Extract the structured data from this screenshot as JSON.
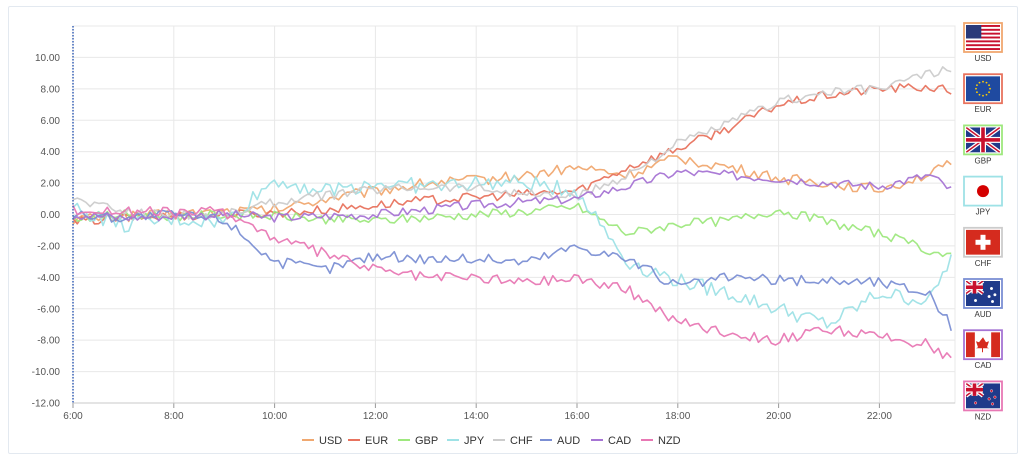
{
  "chart_data": {
    "type": "line",
    "title": "",
    "xlabel": "",
    "ylabel": "",
    "x_tick_labels": [
      "6:00",
      "8:00",
      "10:00",
      "12:00",
      "14:00",
      "16:00",
      "18:00",
      "20:00",
      "22:00"
    ],
    "y_tick_labels": [
      "10.00",
      "8.00",
      "6.00",
      "4.00",
      "2.00",
      "0.00",
      "-2.00",
      "-4.00",
      "-6.00",
      "-8.00",
      "-10.00",
      "-12.00"
    ],
    "xlim_hours": [
      6,
      23.5
    ],
    "ylim": [
      -12,
      12
    ],
    "grid": true,
    "legend_position": "bottom",
    "series": [
      {
        "name": "USD",
        "color": "#f0a870",
        "wobble": 0.35,
        "x": [
          6,
          7,
          8,
          9,
          10,
          11,
          12,
          13,
          14,
          15,
          16,
          17,
          18,
          19,
          20,
          21,
          22,
          23,
          23.5
        ],
        "y": [
          -0.3,
          -0.1,
          0,
          0.2,
          0.3,
          1.0,
          1.5,
          2.0,
          2.2,
          2.5,
          3.0,
          2.5,
          3.6,
          3.0,
          2.3,
          2.0,
          1.6,
          2.6,
          3.3
        ]
      },
      {
        "name": "EUR",
        "color": "#e8735e",
        "wobble": 0.3,
        "x": [
          6,
          7,
          8,
          9,
          10,
          11,
          12,
          13,
          14,
          15,
          16,
          17,
          18,
          19,
          20,
          21,
          22,
          23,
          23.5
        ],
        "y": [
          -0.5,
          -0.2,
          -0.1,
          0,
          0.1,
          0.3,
          0.6,
          0.9,
          1.1,
          1.3,
          1.5,
          3.0,
          4.2,
          5.5,
          7.0,
          7.6,
          8.0,
          8.1,
          7.8
        ]
      },
      {
        "name": "GBP",
        "color": "#9ee87e",
        "wobble": 0.3,
        "x": [
          6,
          7,
          8,
          9,
          10,
          11,
          12,
          13,
          14,
          15,
          16,
          17,
          18,
          19,
          20,
          21,
          22,
          23,
          23.5
        ],
        "y": [
          -0.2,
          0,
          -0.1,
          0,
          -0.1,
          -0.3,
          -0.4,
          -0.2,
          0,
          0.2,
          0.5,
          -1.2,
          -0.6,
          -0.4,
          0.3,
          -0.5,
          -1.2,
          -2.3,
          -2.8
        ]
      },
      {
        "name": "JPY",
        "color": "#9ee2e6",
        "wobble": 0.5,
        "x": [
          6,
          7,
          8,
          9,
          10,
          11,
          12,
          13,
          14,
          15,
          16,
          17,
          18,
          19,
          20,
          21,
          22,
          23,
          23.5
        ],
        "y": [
          0.4,
          -0.7,
          -0.3,
          -0.5,
          2.2,
          1.5,
          2.0,
          1.8,
          2.0,
          2.0,
          1.5,
          -3.0,
          -4.2,
          -5.0,
          -6.0,
          -7.0,
          -5.0,
          -5.5,
          -2.2
        ]
      },
      {
        "name": "CHF",
        "color": "#cccccc",
        "wobble": 0.3,
        "x": [
          6,
          7,
          8,
          9,
          10,
          11,
          12,
          13,
          14,
          15,
          16,
          17,
          18,
          19,
          20,
          21,
          22,
          23,
          23.5
        ],
        "y": [
          1.0,
          0.2,
          0,
          0,
          0.8,
          1.2,
          1.6,
          1.8,
          1.7,
          1.3,
          1.1,
          2.5,
          4.5,
          5.8,
          7.2,
          7.8,
          8.0,
          9.0,
          9.2
        ]
      },
      {
        "name": "AUD",
        "color": "#7b8fd4",
        "wobble": 0.35,
        "x": [
          6,
          7,
          8,
          9,
          10,
          11,
          12,
          13,
          14,
          15,
          16,
          17,
          18,
          19,
          20,
          21,
          22,
          23,
          23.5
        ],
        "y": [
          0,
          -0.2,
          0,
          -0.3,
          -3.0,
          -3.5,
          -2.6,
          -2.8,
          -2.8,
          -3.0,
          -2.0,
          -2.8,
          -4.6,
          -4.0,
          -4.2,
          -4.2,
          -4.3,
          -5.0,
          -7.5
        ]
      },
      {
        "name": "CAD",
        "color": "#a674d4",
        "wobble": 0.3,
        "x": [
          6,
          7,
          8,
          9,
          10,
          11,
          12,
          13,
          14,
          15,
          16,
          17,
          18,
          19,
          20,
          21,
          22,
          23,
          23.5
        ],
        "y": [
          0,
          -0.2,
          -0.1,
          0,
          -0.2,
          -0.1,
          0,
          0.3,
          0.6,
          0.8,
          1.0,
          1.8,
          2.7,
          2.5,
          2.3,
          2.0,
          1.8,
          2.5,
          1.4
        ]
      },
      {
        "name": "NZD",
        "color": "#e878b4",
        "wobble": 0.35,
        "x": [
          6,
          7,
          8,
          9,
          10,
          11,
          12,
          13,
          14,
          15,
          16,
          17,
          18,
          19,
          20,
          21,
          22,
          23,
          23.5
        ],
        "y": [
          0.3,
          0.2,
          0.1,
          0.2,
          -1.5,
          -2.5,
          -3.5,
          -4.0,
          -4.0,
          -4.3,
          -4.0,
          -4.8,
          -6.8,
          -7.5,
          -8.0,
          -7.3,
          -7.8,
          -8.3,
          -9.3
        ]
      }
    ]
  },
  "flags": [
    {
      "code": "USD",
      "kind": "us",
      "border": "#f0a870"
    },
    {
      "code": "EUR",
      "kind": "eu",
      "border": "#e8735e"
    },
    {
      "code": "GBP",
      "kind": "gb",
      "border": "#9ee87e"
    },
    {
      "code": "JPY",
      "kind": "jp",
      "border": "#9ee2e6"
    },
    {
      "code": "CHF",
      "kind": "ch",
      "border": "#cccccc"
    },
    {
      "code": "AUD",
      "kind": "au",
      "border": "#7b8fd4"
    },
    {
      "code": "CAD",
      "kind": "ca",
      "border": "#a674d4"
    },
    {
      "code": "NZD",
      "kind": "nz",
      "border": "#e878b4"
    }
  ]
}
